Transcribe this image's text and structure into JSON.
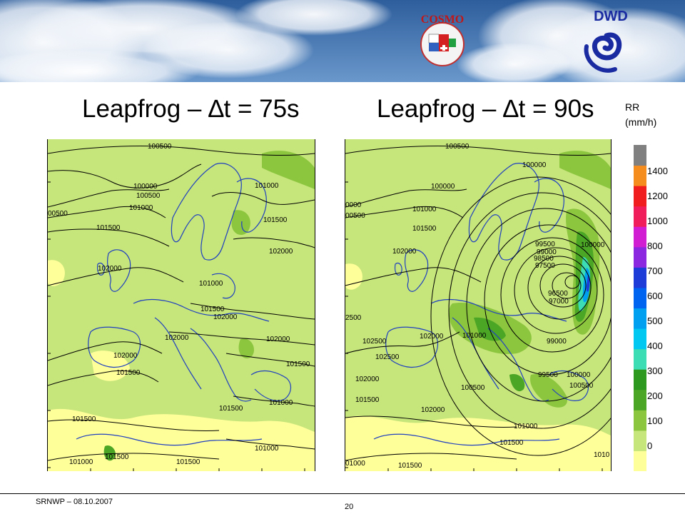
{
  "slide": {
    "title_left": "Leapfrog – ∆t = 75s",
    "title_right": "Leapfrog – ∆t = 90s",
    "rr_unit_top": "RR",
    "rr_unit_bottom": "(mm/h)",
    "footer": "SRNWP – 08.10.2007",
    "page_number": "20"
  },
  "logos": {
    "cosmo": "COSMO",
    "dwd": "DWD"
  },
  "legend": {
    "labels": [
      "1400",
      "1200",
      "1000",
      "800",
      "700",
      "600",
      "500",
      "400",
      "300",
      "200",
      "100",
      "0"
    ],
    "colors": [
      "#ffff9a",
      "#c6e57b",
      "#8cc63f",
      "#4ca626",
      "#2d9a1f",
      "#3cdcb4",
      "#00c8f0",
      "#00a0f0",
      "#0064f0",
      "#1e3cd8",
      "#8c28e0",
      "#d21ed2",
      "#f01e5a",
      "#f01e1e",
      "#f58c1e",
      "#808080"
    ]
  },
  "map_left": {
    "isobars": [
      {
        "text": "100500"
      },
      {
        "text": "100000"
      },
      {
        "text": "100500"
      },
      {
        "text": "101000"
      },
      {
        "text": "00500"
      },
      {
        "text": "101000"
      },
      {
        "text": "101500"
      },
      {
        "text": "101500"
      },
      {
        "text": "102000"
      },
      {
        "text": "102000"
      },
      {
        "text": "101000"
      },
      {
        "text": "101500"
      },
      {
        "text": "102000"
      },
      {
        "text": "102000"
      },
      {
        "text": "102000"
      },
      {
        "text": "102000"
      },
      {
        "text": "101500"
      },
      {
        "text": "101500"
      },
      {
        "text": "101000"
      },
      {
        "text": "101500"
      },
      {
        "text": "101500"
      },
      {
        "text": "101000"
      },
      {
        "text": "101000"
      },
      {
        "text": "101500"
      },
      {
        "text": "101500"
      }
    ]
  },
  "map_right": {
    "isobars": [
      {
        "text": "100500"
      },
      {
        "text": "100000"
      },
      {
        "text": "100000"
      },
      {
        "text": "0000"
      },
      {
        "text": "101000"
      },
      {
        "text": "00500"
      },
      {
        "text": "101500"
      },
      {
        "text": "102000"
      },
      {
        "text": "99500"
      },
      {
        "text": "99000"
      },
      {
        "text": "98500"
      },
      {
        "text": "97500"
      },
      {
        "text": "100000"
      },
      {
        "text": "96500"
      },
      {
        "text": "97000"
      },
      {
        "text": "2500"
      },
      {
        "text": "102500"
      },
      {
        "text": "102000"
      },
      {
        "text": "101000"
      },
      {
        "text": "99000"
      },
      {
        "text": "102500"
      },
      {
        "text": "102000"
      },
      {
        "text": "100500"
      },
      {
        "text": "99500"
      },
      {
        "text": "100000"
      },
      {
        "text": "100500"
      },
      {
        "text": "101500"
      },
      {
        "text": "102000"
      },
      {
        "text": "101000"
      },
      {
        "text": "101500"
      },
      {
        "text": "1010"
      },
      {
        "text": "01000"
      },
      {
        "text": "101500"
      }
    ]
  }
}
